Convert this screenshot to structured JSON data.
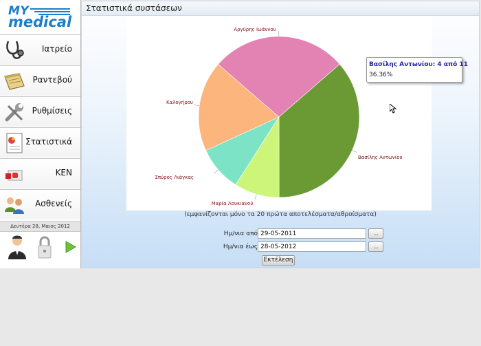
{
  "app": {
    "logo_top": "MY",
    "logo_bottom": "medical"
  },
  "sidebar": {
    "items": [
      {
        "label": "Ιατρείο",
        "icon": "stethoscope-icon"
      },
      {
        "label": "Ραντεβού",
        "icon": "notepad-icon"
      },
      {
        "label": "Ρυθμίσεις",
        "icon": "wrench-icon"
      },
      {
        "label": "Στατιστικά",
        "icon": "report-chart-icon"
      },
      {
        "label": "ΚΕΝ",
        "icon": "medical-kit-icon"
      },
      {
        "label": "Ασθενείς",
        "icon": "patients-icon"
      }
    ],
    "date": "Δευτέρα 28, Μαιος 2012",
    "bottom_icons": [
      "doctor-user-icon",
      "padlock-icon",
      "play-arrow-icon"
    ]
  },
  "main": {
    "title": "Στατιστικά συστάσεων",
    "note": "(εμφανίζονται μόνο τα 20 πρώτα αποτελέσματα/αθροίσματα)",
    "date_from_label": "Ημ/νια από",
    "date_from_value": "29-05-2011",
    "date_to_label": "Ημ/νια έως",
    "date_to_value": "28-05-2012",
    "picker_label": "...",
    "run_label": "Εκτέλεση"
  },
  "tooltip": {
    "title": "Βασίλης Αντωνίου: 4 από 11",
    "value": "36.36%"
  },
  "chart_data": {
    "type": "pie",
    "slices": [
      {
        "name": "Βασίλης Αντωνίου",
        "value": 4,
        "color": "#6b9a35"
      },
      {
        "name": "Μαρία Λουκιανού",
        "value": 1,
        "color": "#ccf57a"
      },
      {
        "name": "Σπύρος Λιάγκας",
        "value": 1,
        "color": "#7de3c6"
      },
      {
        "name": "Καλογήρου",
        "value": 2,
        "color": "#fcb57c"
      },
      {
        "name": "Αργύρης Ιωάννου",
        "value": 3,
        "color": "#e383b4"
      }
    ],
    "total": 11
  }
}
